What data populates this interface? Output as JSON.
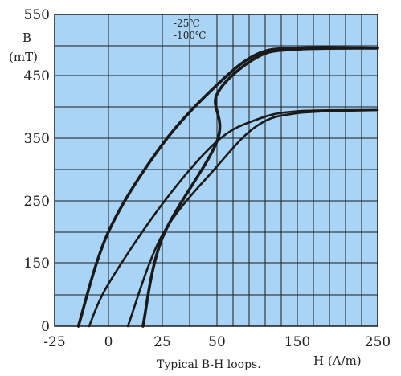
{
  "chart_data": {
    "type": "line",
    "title": "",
    "caption": "Typical B-H loops.",
    "xlabel": "H (A/m)",
    "ylabel_line1": "B",
    "ylabel_line2": "(mT)",
    "xlim": [
      -25,
      250
    ],
    "ylim": [
      0,
      550
    ],
    "x_ticks": [
      "-25",
      "0",
      "25",
      "50",
      "150",
      "250"
    ],
    "y_ticks": [
      "0",
      "150",
      "250",
      "350",
      "450",
      "550"
    ],
    "legend": [
      "-25℃",
      "-100℃"
    ],
    "colors": {
      "plot_background": "#a9d4f5",
      "grid": "#1a1a1a",
      "curve": "#1a1a1a"
    },
    "series": [
      {
        "name": "-25℃",
        "segments": [
          {
            "x": [
              -14,
              0,
              25,
              50,
              100,
              150,
              250
            ],
            "y": [
              0,
              200,
              340,
              435,
              485,
              495,
              495
            ]
          },
          {
            "x": [
              16,
              25,
              50,
              50,
              100,
              150,
              250
            ],
            "y": [
              0,
              190,
              345,
              420,
              480,
              493,
              495
            ]
          }
        ]
      },
      {
        "name": "-100℃",
        "segments": [
          {
            "x": [
              -9,
              0,
              25,
              50,
              100,
              150,
              250
            ],
            "y": [
              0,
              100,
              245,
              345,
              380,
              393,
              395
            ]
          },
          {
            "x": [
              9,
              25,
              50,
              100,
              150,
              250
            ],
            "y": [
              0,
              195,
              305,
              370,
              390,
              395
            ]
          }
        ]
      }
    ]
  }
}
